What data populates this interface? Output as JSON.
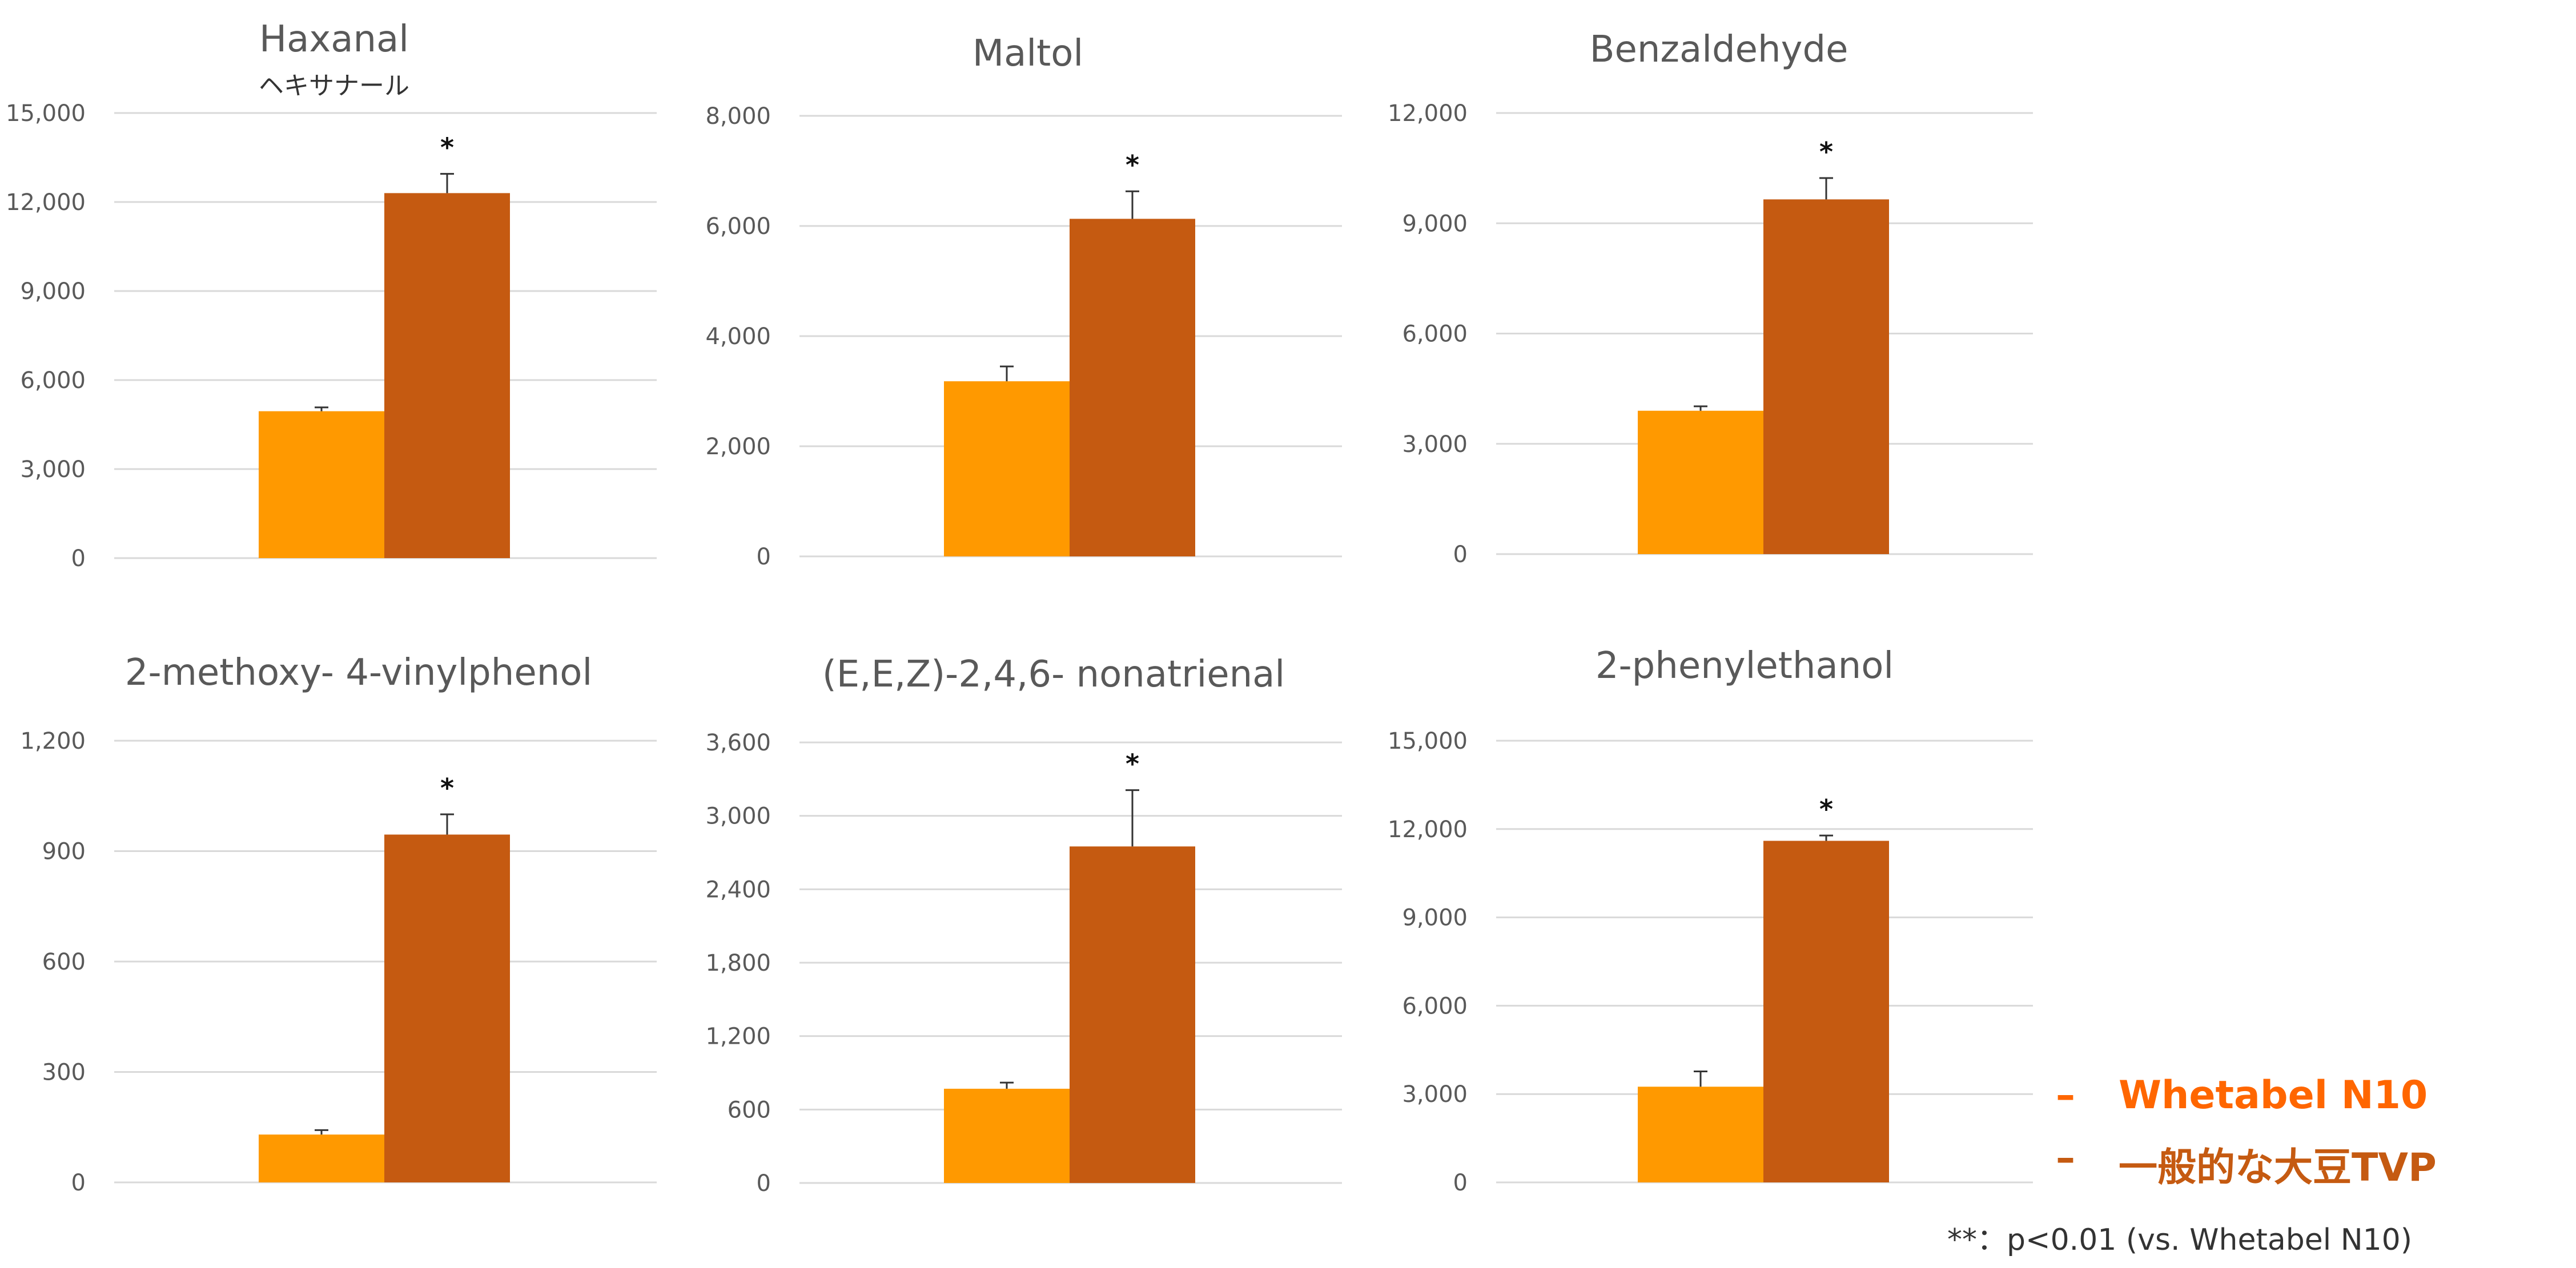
{
  "colors": {
    "series1": "#FF9900",
    "series2": "#C55A11",
    "grid": "#D9D9D9",
    "axis_text": "#595959",
    "title_text": "#595959",
    "legend1": "#FF6600",
    "legend2": "#C55A11"
  },
  "legend": {
    "dash": "–",
    "items": [
      "Whetabel N10",
      "一般的な大豆TVP"
    ]
  },
  "note": "**：p<0.01 (vs. Whetabel N10)",
  "chart_data": [
    {
      "type": "bar",
      "title": "Haxanal",
      "subtitle": "ヘキサナール",
      "ylim": [
        0,
        15000
      ],
      "yticks": [
        "0",
        "3,000",
        "6,000",
        "9,000",
        "12,000",
        "15,000"
      ],
      "series": [
        {
          "name": "Whetabel N10",
          "value": 4950,
          "error": 130
        },
        {
          "name": "一般的な大豆TVP",
          "value": 12300,
          "error": 650
        }
      ],
      "significance": "*"
    },
    {
      "type": "bar",
      "title": "Maltol",
      "ylim": [
        0,
        8000
      ],
      "yticks": [
        "0",
        "2,000",
        "4,000",
        "6,000",
        "8,000"
      ],
      "series": [
        {
          "name": "Whetabel N10",
          "value": 3180,
          "error": 270
        },
        {
          "name": "一般的な大豆TVP",
          "value": 6130,
          "error": 500
        }
      ],
      "significance": "*"
    },
    {
      "type": "bar",
      "title": "Benzaldehyde",
      "ylim": [
        0,
        12000
      ],
      "yticks": [
        "0",
        "3,000",
        "6,000",
        "9,000",
        "12,000"
      ],
      "series": [
        {
          "name": "Whetabel N10",
          "value": 3900,
          "error": 120
        },
        {
          "name": "一般的な大豆TVP",
          "value": 9650,
          "error": 580
        }
      ],
      "significance": "*"
    },
    {
      "type": "bar",
      "title": "2-methoxy- 4-vinylphenol",
      "ylim": [
        0,
        1200
      ],
      "yticks": [
        "0",
        "300",
        "600",
        "900",
        "1,200"
      ],
      "series": [
        {
          "name": "Whetabel N10",
          "value": 130,
          "error": 12
        },
        {
          "name": "一般的な大豆TVP",
          "value": 945,
          "error": 55
        }
      ],
      "significance": "*"
    },
    {
      "type": "bar",
      "title": "(E,E,Z)-2,4,6- nonatrienal",
      "ylim": [
        0,
        3600
      ],
      "yticks": [
        "0",
        "600",
        "1,200",
        "1,800",
        "2,400",
        "3,000",
        "3,600"
      ],
      "series": [
        {
          "name": "Whetabel N10",
          "value": 770,
          "error": 50
        },
        {
          "name": "一般的な大豆TVP",
          "value": 2750,
          "error": 460
        }
      ],
      "significance": "*"
    },
    {
      "type": "bar",
      "title": "2-phenylethanol",
      "ylim": [
        0,
        15000
      ],
      "yticks": [
        "0",
        "3,000",
        "6,000",
        "9,000",
        "12,000",
        "15,000"
      ],
      "series": [
        {
          "name": "Whetabel N10",
          "value": 3250,
          "error": 520
        },
        {
          "name": "一般的な大豆TVP",
          "value": 11600,
          "error": 180
        }
      ],
      "significance": "*"
    }
  ]
}
